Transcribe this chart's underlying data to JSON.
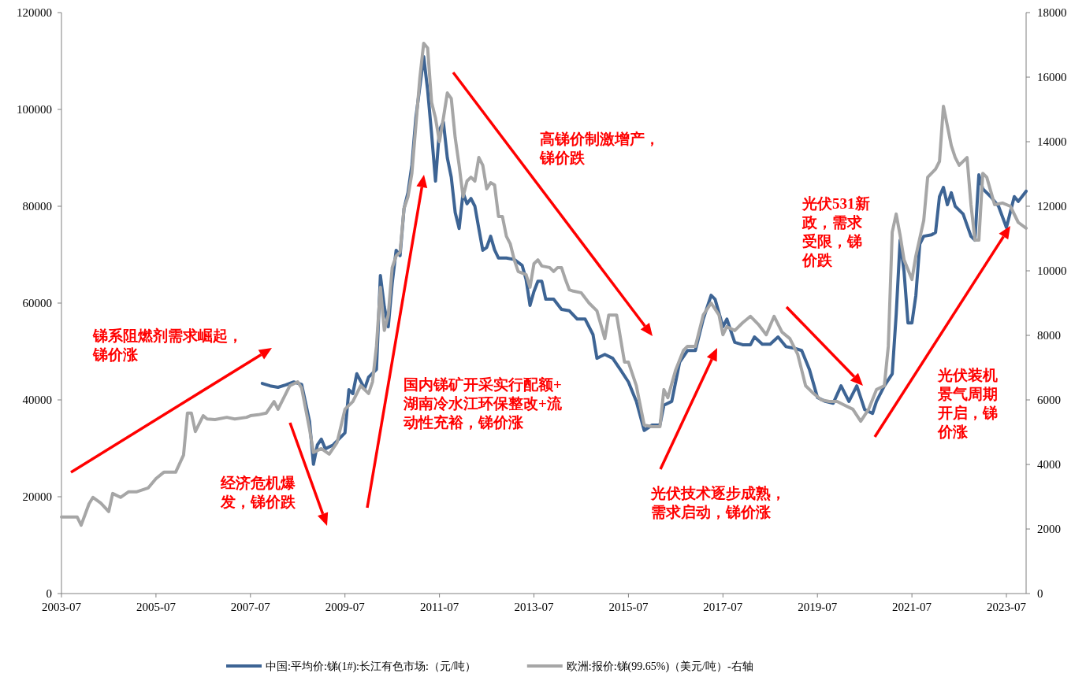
{
  "chart_data": {
    "type": "line",
    "xlim": [
      "2003-07",
      "2023-12"
    ],
    "xticks": [
      "2003-07",
      "2005-07",
      "2007-07",
      "2009-07",
      "2011-07",
      "2013-07",
      "2015-07",
      "2017-07",
      "2019-07",
      "2021-07",
      "2023-07"
    ],
    "ylim": [
      0,
      120000
    ],
    "yticks": [
      0,
      20000,
      40000,
      60000,
      80000,
      100000,
      120000
    ],
    "y2lim": [
      0,
      18000
    ],
    "y2ticks": [
      0,
      2000,
      4000,
      6000,
      8000,
      10000,
      12000,
      14000,
      16000,
      18000
    ],
    "legend": "bottom",
    "series": [
      {
        "name": "中国:平均价:锑(1#):长江有色市场:（元/吨）",
        "color": "#3d6494",
        "x": [
          "2007-10",
          "2007-12",
          "2008-02",
          "2008-04",
          "2008-06",
          "2008-08",
          "2008-10",
          "2008-11",
          "2008-12",
          "2009-01",
          "2009-02",
          "2009-04",
          "2009-07",
          "2009-08",
          "2009-09",
          "2009-10",
          "2009-12",
          "2010-01",
          "2010-03",
          "2010-04",
          "2010-05",
          "2010-06",
          "2010-07",
          "2010-08",
          "2010-09",
          "2010-10",
          "2010-11",
          "2010-12",
          "2011-01",
          "2011-03",
          "2011-04",
          "2011-05",
          "2011-06",
          "2011-07",
          "2011-08",
          "2011-09",
          "2011-10",
          "2011-11",
          "2011-12",
          "2012-01",
          "2012-02",
          "2012-03",
          "2012-04",
          "2012-05",
          "2012-06",
          "2012-07",
          "2012-08",
          "2012-09",
          "2012-10",
          "2012-12",
          "2013-02",
          "2013-04",
          "2013-05",
          "2013-06",
          "2013-07",
          "2013-08",
          "2013-09",
          "2013-10",
          "2013-12",
          "2014-02",
          "2014-04",
          "2014-06",
          "2014-08",
          "2014-10",
          "2014-11",
          "2015-01",
          "2015-03",
          "2015-05",
          "2015-07",
          "2015-09",
          "2015-11",
          "2016-01",
          "2016-03",
          "2016-04",
          "2016-06",
          "2016-08",
          "2016-10",
          "2016-12",
          "2017-02",
          "2017-04",
          "2017-05",
          "2017-07",
          "2017-08",
          "2017-10",
          "2017-12",
          "2018-02",
          "2018-03",
          "2018-05",
          "2018-07",
          "2018-09",
          "2018-11",
          "2019-01",
          "2019-03",
          "2019-05",
          "2019-07",
          "2019-09",
          "2019-11",
          "2020-01",
          "2020-03",
          "2020-05",
          "2020-07",
          "2020-09",
          "2020-10",
          "2020-12",
          "2021-02",
          "2021-03",
          "2021-04",
          "2021-05",
          "2021-06",
          "2021-07",
          "2021-08",
          "2021-09",
          "2021-10",
          "2021-12",
          "2022-01",
          "2022-02",
          "2022-03",
          "2022-04",
          "2022-05",
          "2022-06",
          "2022-08",
          "2022-10",
          "2022-11",
          "2022-12",
          "2023-01",
          "2023-03",
          "2023-05",
          "2023-07",
          "2023-09",
          "2023-10",
          "2023-12"
        ],
        "values": [
          43400,
          42900,
          42600,
          43100,
          43700,
          43200,
          35600,
          26700,
          30700,
          31900,
          29900,
          30700,
          33200,
          42100,
          41300,
          45400,
          42300,
          44700,
          46300,
          65700,
          59200,
          55100,
          64100,
          70900,
          69800,
          79500,
          82800,
          88500,
          98200,
          110900,
          104000,
          95000,
          85200,
          95800,
          97400,
          90000,
          86000,
          78700,
          75400,
          82800,
          80500,
          81600,
          80000,
          75400,
          70900,
          71500,
          73800,
          71000,
          69300,
          69300,
          69000,
          67800,
          64900,
          59500,
          62400,
          64500,
          64500,
          60800,
          60800,
          58700,
          58400,
          56700,
          56700,
          53500,
          48600,
          49400,
          48600,
          46200,
          43700,
          39700,
          33700,
          34800,
          34800,
          38900,
          39700,
          47800,
          50200,
          50200,
          56700,
          61600,
          60800,
          55100,
          56700,
          51900,
          51400,
          51400,
          53000,
          51500,
          51500,
          53000,
          51000,
          50700,
          50200,
          46200,
          40500,
          39700,
          39300,
          42900,
          39700,
          42900,
          38000,
          37200,
          39700,
          42900,
          45400,
          57600,
          73000,
          66500,
          55900,
          55900,
          61600,
          72200,
          73800,
          74100,
          74600,
          82000,
          83900,
          80300,
          82800,
          80000,
          78400,
          73800,
          73000,
          86500,
          83600,
          82000,
          80000,
          75600,
          82000,
          81000,
          83100
        ]
      },
      {
        "name": "欧洲:报价:锑(99.65%)（美元/吨）-右轴",
        "color": "#a6a6a6",
        "axis": "y2",
        "x": [
          "2003-07",
          "2003-11",
          "2003-12",
          "2004-02",
          "2004-03",
          "2004-05",
          "2004-07",
          "2004-08",
          "2004-10",
          "2004-12",
          "2005-02",
          "2005-05",
          "2005-07",
          "2005-09",
          "2005-12",
          "2006-02",
          "2006-03",
          "2006-04",
          "2006-05",
          "2006-07",
          "2006-08",
          "2006-10",
          "2007-01",
          "2007-03",
          "2007-06",
          "2007-07",
          "2007-09",
          "2007-11",
          "2008-01",
          "2008-02",
          "2008-05",
          "2008-07",
          "2008-08",
          "2008-10",
          "2008-11",
          "2009-01",
          "2009-03",
          "2009-05",
          "2009-07",
          "2009-09",
          "2009-11",
          "2010-01",
          "2010-02",
          "2010-03",
          "2010-04",
          "2010-05",
          "2010-06",
          "2010-07",
          "2010-08",
          "2010-09",
          "2010-10",
          "2010-11",
          "2010-12",
          "2011-01",
          "2011-02",
          "2011-03",
          "2011-04",
          "2011-05",
          "2011-06",
          "2011-07",
          "2011-08",
          "2011-09",
          "2011-10",
          "2011-11",
          "2011-12",
          "2012-01",
          "2012-02",
          "2012-03",
          "2012-04",
          "2012-05",
          "2012-06",
          "2012-07",
          "2012-08",
          "2012-09",
          "2012-10",
          "2012-11",
          "2012-12",
          "2013-01",
          "2013-02",
          "2013-03",
          "2013-05",
          "2013-06",
          "2013-07",
          "2013-08",
          "2013-09",
          "2013-11",
          "2013-12",
          "2014-01",
          "2014-02",
          "2014-03",
          "2014-04",
          "2014-05",
          "2014-07",
          "2014-09",
          "2014-11",
          "2015-01",
          "2015-02",
          "2015-04",
          "2015-06",
          "2015-07",
          "2015-09",
          "2015-11",
          "2016-01",
          "2016-03",
          "2016-04",
          "2016-05",
          "2016-07",
          "2016-09",
          "2016-10",
          "2016-12",
          "2017-02",
          "2017-04",
          "2017-06",
          "2017-07",
          "2017-08",
          "2017-10",
          "2017-12",
          "2018-02",
          "2018-04",
          "2018-06",
          "2018-08",
          "2018-10",
          "2018-12",
          "2019-02",
          "2019-04",
          "2019-06",
          "2019-08",
          "2019-10",
          "2019-12",
          "2020-02",
          "2020-04",
          "2020-06",
          "2020-08",
          "2020-10",
          "2020-12",
          "2021-01",
          "2021-02",
          "2021-03",
          "2021-04",
          "2021-05",
          "2021-07",
          "2021-08",
          "2021-10",
          "2021-11",
          "2022-01",
          "2022-02",
          "2022-03",
          "2022-05",
          "2022-06",
          "2022-07",
          "2022-09",
          "2022-10",
          "2022-11",
          "2022-12",
          "2023-01",
          "2023-02",
          "2023-04",
          "2023-06",
          "2023-08",
          "2023-10",
          "2023-12"
        ],
        "values": [
          2370,
          2370,
          2120,
          2780,
          2980,
          2800,
          2540,
          3100,
          2980,
          3150,
          3150,
          3270,
          3560,
          3760,
          3760,
          4290,
          5590,
          5590,
          5020,
          5510,
          5410,
          5390,
          5460,
          5410,
          5460,
          5510,
          5540,
          5590,
          5950,
          5710,
          6440,
          6560,
          6370,
          5100,
          4370,
          4490,
          4320,
          4680,
          5710,
          5950,
          6440,
          6200,
          6560,
          7660,
          9490,
          8150,
          8630,
          10100,
          10460,
          10580,
          11930,
          12290,
          13020,
          14490,
          15950,
          17050,
          16900,
          15220,
          14730,
          14000,
          14730,
          15510,
          15340,
          14120,
          13270,
          12290,
          12780,
          12900,
          12780,
          13510,
          13270,
          12540,
          12730,
          12660,
          11680,
          11680,
          11070,
          10830,
          10340,
          9980,
          9880,
          9490,
          10220,
          10340,
          10150,
          10100,
          9980,
          10100,
          10100,
          9730,
          9410,
          9370,
          9320,
          9000,
          8760,
          7900,
          8630,
          8630,
          7170,
          7170,
          6440,
          5220,
          5170,
          5170,
          6320,
          6070,
          6930,
          7540,
          7660,
          7660,
          8630,
          9000,
          8630,
          8020,
          8270,
          8150,
          8390,
          8590,
          8340,
          8020,
          8590,
          8100,
          7900,
          7410,
          6440,
          6200,
          6000,
          5950,
          5950,
          5830,
          5710,
          5340,
          5710,
          6320,
          6440,
          7660,
          11200,
          11760,
          11100,
          10340,
          9730,
          10460,
          11560,
          12900,
          13150,
          13390,
          15100,
          13880,
          13510,
          13270,
          13510,
          12050,
          10950,
          10950,
          13020,
          12900,
          12050,
          12100,
          12000,
          11500,
          11320
        ]
      }
    ],
    "annotations": [
      "锑系阻燃剂需求崛起，锑价涨",
      "经济危机爆发，锑价跌",
      "国内锑矿开采实行配额+湖南冷水江环保整改+流动性充裕，锑价涨",
      "高锑价制激增产，锑价跌",
      "光伏技术逐步成熟，需求启动，锑价涨",
      "光伏531新政，需求受限，锑价跌",
      "光伏装机景气周期开启，锑价涨"
    ]
  }
}
